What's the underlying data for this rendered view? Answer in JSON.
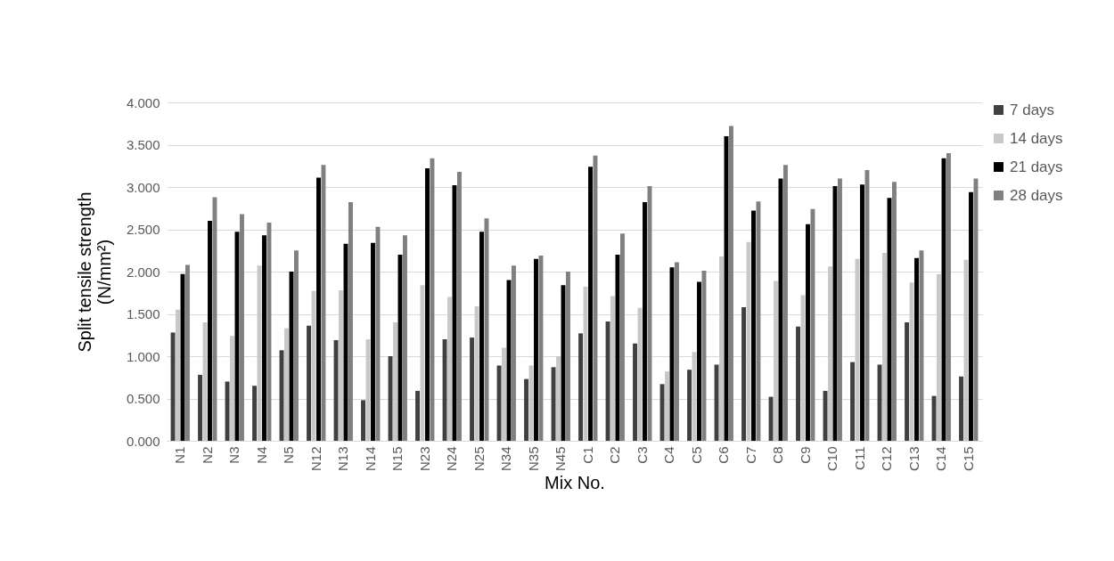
{
  "chart_data": {
    "type": "bar",
    "xlabel": "Mix No.",
    "ylabel": "Split tensile strength (N/mm²)",
    "categories": [
      "N1",
      "N2",
      "N3",
      "N4",
      "N5",
      "N12",
      "N13",
      "N14",
      "N15",
      "N23",
      "N24",
      "N25",
      "N34",
      "N35",
      "N45",
      "C1",
      "C2",
      "C3",
      "C4",
      "C5",
      "C6",
      "C7",
      "C8",
      "C9",
      "C10",
      "C11",
      "C12",
      "C13",
      "C14",
      "C15"
    ],
    "series": [
      {
        "name": "7 days",
        "color": "#404040",
        "values": [
          1.28,
          0.78,
          0.7,
          0.65,
          1.07,
          1.36,
          1.19,
          0.48,
          1.0,
          0.59,
          1.2,
          1.22,
          0.89,
          0.73,
          0.87,
          1.27,
          1.41,
          1.15,
          0.67,
          0.84,
          0.9,
          1.58,
          0.52,
          1.35,
          0.59,
          0.93,
          0.9,
          1.4,
          0.53,
          0.76
        ]
      },
      {
        "name": "14 days",
        "color": "#c8c8c8",
        "values": [
          1.55,
          1.4,
          1.24,
          2.07,
          1.33,
          1.77,
          1.78,
          1.2,
          1.4,
          1.84,
          1.7,
          1.59,
          1.1,
          0.89,
          1.0,
          1.82,
          1.71,
          1.57,
          0.82,
          1.05,
          2.18,
          2.35,
          1.89,
          1.72,
          2.06,
          2.15,
          2.22,
          1.87,
          1.97,
          2.14
        ]
      },
      {
        "name": "21 days",
        "color": "#000000",
        "values": [
          1.97,
          2.6,
          2.47,
          2.43,
          2.0,
          3.11,
          2.33,
          2.34,
          2.2,
          3.22,
          3.02,
          2.47,
          1.9,
          2.15,
          1.84,
          3.24,
          2.2,
          2.82,
          2.05,
          1.88,
          3.6,
          2.72,
          3.1,
          2.56,
          3.01,
          3.03,
          2.87,
          2.16,
          3.34,
          2.94
        ]
      },
      {
        "name": "28 days",
        "color": "#808080",
        "values": [
          2.08,
          2.88,
          2.68,
          2.58,
          2.25,
          3.26,
          2.82,
          2.53,
          2.43,
          3.34,
          3.18,
          2.63,
          2.07,
          2.19,
          2.0,
          3.37,
          2.45,
          3.01,
          2.11,
          2.01,
          3.72,
          2.83,
          3.26,
          2.74,
          3.1,
          3.2,
          3.06,
          2.25,
          3.4,
          3.1
        ]
      }
    ],
    "ylim": [
      0,
      4
    ],
    "yticks": [
      {
        "value": 0,
        "label": "0.000"
      },
      {
        "value": 0.5,
        "label": "0.500"
      },
      {
        "value": 1,
        "label": "1.000"
      },
      {
        "value": 1.5,
        "label": "1.500"
      },
      {
        "value": 2,
        "label": "2.000"
      },
      {
        "value": 2.5,
        "label": "2.500"
      },
      {
        "value": 3,
        "label": "3.000"
      },
      {
        "value": 3.5,
        "label": "3.500"
      },
      {
        "value": 4,
        "label": "4.000"
      }
    ],
    "grid": "y",
    "legend": "right"
  }
}
